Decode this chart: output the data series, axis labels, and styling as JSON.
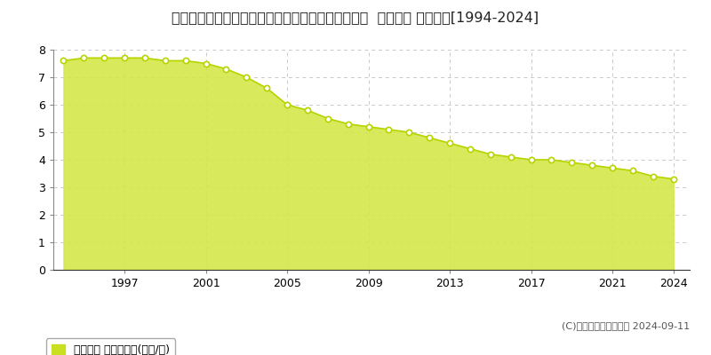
{
  "title": "長野県上水内郡信濃町大字古間字切通し９２５番２  地価公示 地価推移[1994-2024]",
  "years": [
    1994,
    1995,
    1996,
    1997,
    1998,
    1999,
    2000,
    2001,
    2002,
    2003,
    2004,
    2005,
    2006,
    2007,
    2008,
    2009,
    2010,
    2011,
    2012,
    2013,
    2014,
    2015,
    2016,
    2017,
    2018,
    2019,
    2020,
    2021,
    2022,
    2023,
    2024
  ],
  "values": [
    7.6,
    7.7,
    7.7,
    7.7,
    7.7,
    7.6,
    7.6,
    7.5,
    7.3,
    7.0,
    6.6,
    6.0,
    5.8,
    5.5,
    5.3,
    5.2,
    5.1,
    5.0,
    4.8,
    4.6,
    4.4,
    4.2,
    4.1,
    4.0,
    4.0,
    3.9,
    3.8,
    3.7,
    3.6,
    3.4,
    3.3
  ],
  "fill_color": "#d4e84a",
  "line_color": "#b8d400",
  "marker_color": "#ffffff",
  "marker_edge_color": "#b8d400",
  "background_color": "#ffffff",
  "grid_color": "#c8c8c8",
  "yticks": [
    0,
    1,
    2,
    3,
    4,
    5,
    6,
    7,
    8
  ],
  "xticks": [
    1997,
    2001,
    2005,
    2009,
    2013,
    2017,
    2021,
    2024
  ],
  "ylim": [
    0,
    8
  ],
  "xlim": [
    1993.5,
    2024.8
  ],
  "legend_label": "地価公示 平均坪単価(万円/坪)",
  "legend_color": "#c8e020",
  "copyright_text": "(C)土地価格ドットコム 2024-09-11",
  "title_fontsize": 11.5,
  "axis_fontsize": 9,
  "legend_fontsize": 9
}
